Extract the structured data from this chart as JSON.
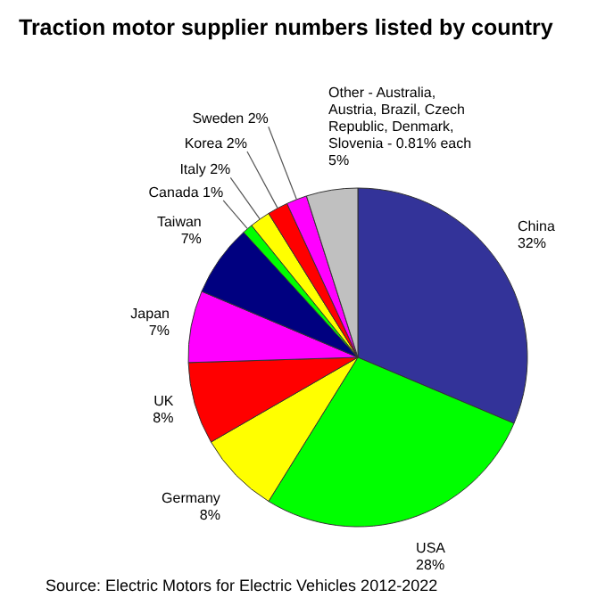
{
  "chart_data": {
    "type": "pie",
    "title": "Traction motor supplier numbers listed by country",
    "categories": [
      "China",
      "USA",
      "Germany",
      "UK",
      "Japan",
      "Taiwan",
      "Canada",
      "Italy",
      "Korea",
      "Sweden",
      "Other - Australia, Austria, Brazil, Czech Republic, Denmark, Slovenia - 0.81% each"
    ],
    "values": [
      32,
      28,
      8,
      8,
      7,
      7,
      1,
      2,
      2,
      2,
      5
    ],
    "value_labels": [
      "32%",
      "28%",
      "8%",
      "8%",
      "7%",
      "7%",
      "1%",
      "2%",
      "2%",
      "2%",
      "5%"
    ],
    "colors": [
      "#333399",
      "#00ff00",
      "#ffff00",
      "#ff0000",
      "#ff00ff",
      "#000080",
      "#00ff00",
      "#ffff00",
      "#ff0000",
      "#ff00ff",
      "#c0c0c0"
    ],
    "annotations": [
      "Source: Electric Motors for Electric Vehicles 2012-2022"
    ]
  }
}
